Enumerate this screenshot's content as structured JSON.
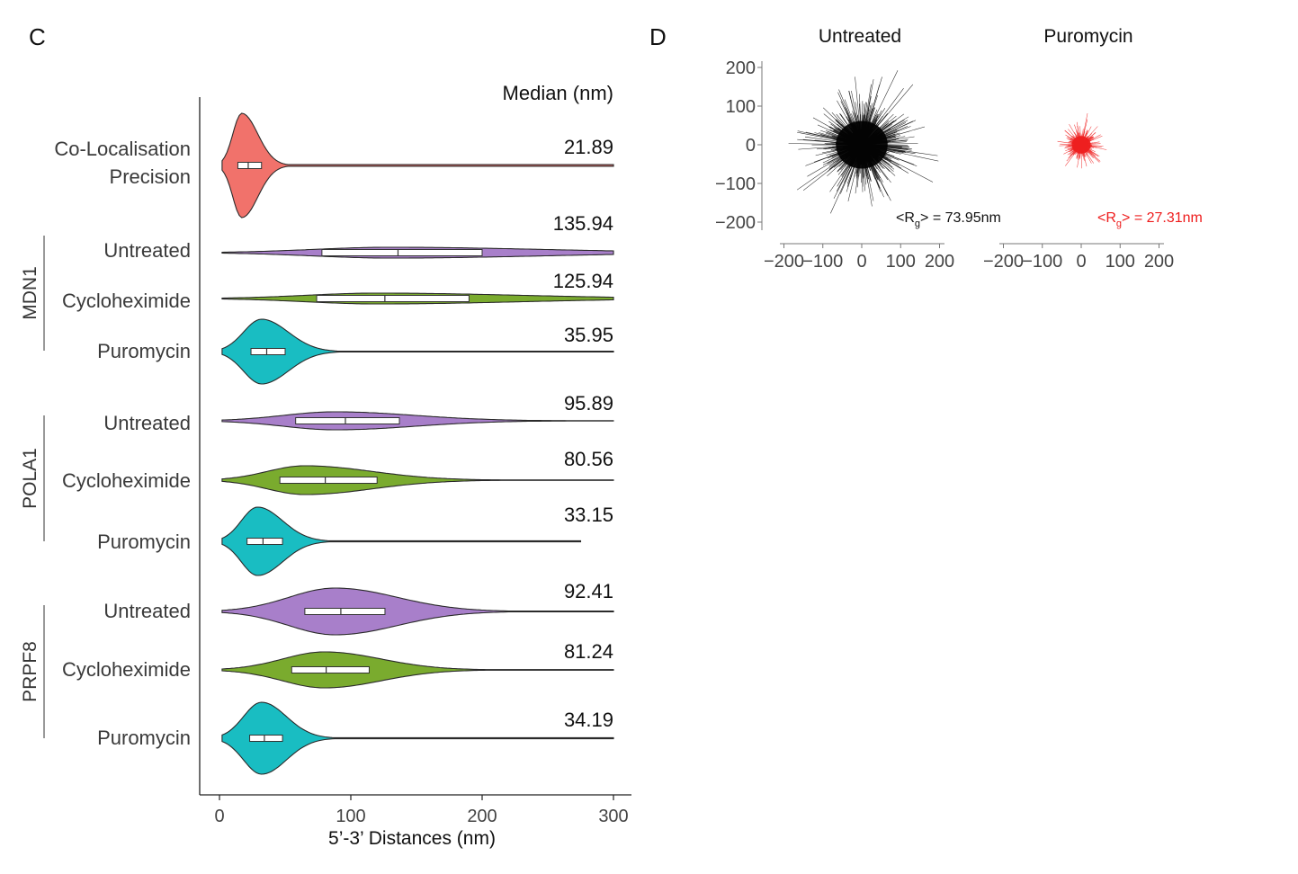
{
  "chart_data": [
    {
      "panel": "C",
      "type": "violin",
      "orientation": "horizontal",
      "xlabel": "5’-3’ Distances (nm)",
      "xlim": [
        -15,
        310
      ],
      "xticks": [
        0,
        100,
        200,
        300
      ],
      "median_header": "Median (nm)",
      "rows": [
        {
          "group": "",
          "label_lines": [
            "Co-Localisation",
            "Precision"
          ],
          "color": "#f1726b",
          "median": 21.89,
          "median_text": "21.89",
          "q1": 14,
          "q3": 32,
          "min": 2,
          "max": 300,
          "peak": 17,
          "spread": 9
        },
        {
          "group": "MDN1",
          "label_lines": [
            "Untreated"
          ],
          "color": "#a87fca",
          "median": 135.94,
          "median_text": "135.94",
          "q1": 78,
          "q3": 200,
          "min": 2,
          "max": 300,
          "peak": 130,
          "spread": 85
        },
        {
          "group": "MDN1",
          "label_lines": [
            "Cycloheximide"
          ],
          "color": "#7aab2e",
          "median": 125.94,
          "median_text": "125.94",
          "q1": 74,
          "q3": 190,
          "min": 2,
          "max": 300,
          "peak": 120,
          "spread": 80
        },
        {
          "group": "MDN1",
          "label_lines": [
            "Puromycin"
          ],
          "color": "#19bdc2",
          "median": 35.95,
          "median_text": "35.95",
          "q1": 24,
          "q3": 50,
          "min": 2,
          "max": 300,
          "peak": 32,
          "spread": 15
        },
        {
          "group": "POLA1",
          "label_lines": [
            "Untreated"
          ],
          "color": "#a87fca",
          "median": 95.89,
          "median_text": "95.89",
          "q1": 58,
          "q3": 137,
          "min": 2,
          "max": 300,
          "peak": 88,
          "spread": 45
        },
        {
          "group": "POLA1",
          "label_lines": [
            "Cycloheximide"
          ],
          "color": "#7aab2e",
          "median": 80.56,
          "median_text": "80.56",
          "q1": 46,
          "q3": 120,
          "min": 2,
          "max": 300,
          "peak": 65,
          "spread": 38
        },
        {
          "group": "POLA1",
          "label_lines": [
            "Puromycin"
          ],
          "color": "#19bdc2",
          "median": 33.15,
          "median_text": "33.15",
          "q1": 21,
          "q3": 48,
          "min": 2,
          "max": 275,
          "peak": 29,
          "spread": 14
        },
        {
          "group": "PRPF8",
          "label_lines": [
            "Untreated"
          ],
          "color": "#a87fca",
          "median": 92.41,
          "median_text": "92.41",
          "q1": 65,
          "q3": 126,
          "min": 2,
          "max": 300,
          "peak": 88,
          "spread": 35
        },
        {
          "group": "PRPF8",
          "label_lines": [
            "Cycloheximide"
          ],
          "color": "#7aab2e",
          "median": 81.24,
          "median_text": "81.24",
          "q1": 55,
          "q3": 114,
          "min": 2,
          "max": 300,
          "peak": 80,
          "spread": 32
        },
        {
          "group": "PRPF8",
          "label_lines": [
            "Puromycin"
          ],
          "color": "#19bdc2",
          "median": 34.19,
          "median_text": "34.19",
          "q1": 23,
          "q3": 48,
          "min": 2,
          "max": 300,
          "peak": 32,
          "spread": 14
        }
      ],
      "groups": [
        "MDN1",
        "POLA1",
        "PRPF8"
      ]
    },
    {
      "panel": "D",
      "type": "scatter",
      "subplots": [
        {
          "title": "Untreated",
          "color": "#000000",
          "rg_text": "<R",
          "rg_sub": "g",
          "rg_rest": "> = 73.95nm",
          "rg_nm": 73.95
        },
        {
          "title": "Puromycin",
          "color": "#ee1c1c",
          "rg_text": "<R",
          "rg_sub": "g",
          "rg_rest": "> = 27.31nm",
          "rg_nm": 27.31
        }
      ],
      "xlim": [
        -200,
        200
      ],
      "ylim": [
        -200,
        200
      ],
      "xticks": [
        "−200",
        "−100",
        "0",
        "100",
        "200"
      ],
      "yticks": [
        "200",
        "100",
        "0",
        "−100",
        "−200"
      ]
    }
  ]
}
